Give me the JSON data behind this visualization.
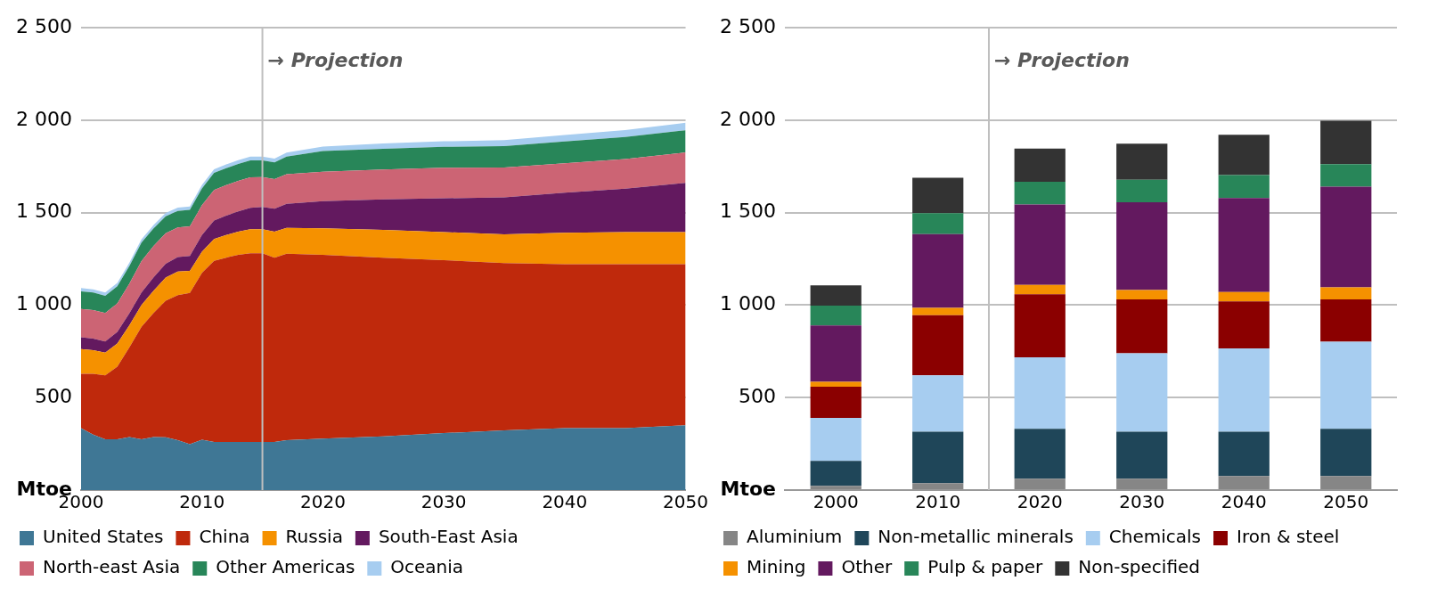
{
  "chart_data": [
    {
      "type": "area",
      "stacked": true,
      "x": [
        2000,
        2001,
        2002,
        2003,
        2004,
        2005,
        2006,
        2007,
        2008,
        2009,
        2010,
        2011,
        2012,
        2013,
        2014,
        2015,
        2016,
        2017,
        2020,
        2025,
        2030,
        2035,
        2040,
        2045,
        2050
      ],
      "series": [
        {
          "name": "United States",
          "color": "#3f7795",
          "values": [
            335,
            300,
            275,
            275,
            287,
            275,
            287,
            285,
            270,
            248,
            272,
            260,
            260,
            260,
            260,
            260,
            260,
            270,
            278,
            290,
            308,
            323,
            335,
            335,
            350
          ]
        },
        {
          "name": "China",
          "color": "#bf290c",
          "values": [
            294,
            329,
            345,
            393,
            485,
            608,
            671,
            739,
            784,
            818,
            902,
            980,
            997,
            1012,
            1021,
            1021,
            997,
            1008,
            994,
            967,
            935,
            905,
            887,
            887,
            872
          ]
        },
        {
          "name": "Russia",
          "color": "#f59100",
          "values": [
            134,
            128,
            123,
            125,
            120,
            118,
            120,
            125,
            128,
            120,
            115,
            118,
            122,
            125,
            130,
            130,
            140,
            140,
            144,
            150,
            152,
            155,
            170,
            173,
            173
          ]
        },
        {
          "name": "South-East Asia",
          "color": "#63195f",
          "values": [
            63,
            62,
            60,
            62,
            65,
            68,
            72,
            75,
            78,
            80,
            90,
            100,
            105,
            110,
            115,
            120,
            125,
            130,
            147,
            165,
            183,
            200,
            216,
            235,
            266
          ]
        },
        {
          "name": "North-east Asia",
          "color": "#cc6474",
          "values": [
            153,
            155,
            155,
            155,
            160,
            170,
            170,
            165,
            160,
            160,
            162,
            165,
            165,
            165,
            165,
            162,
            160,
            160,
            159,
            162,
            165,
            162,
            159,
            160,
            165
          ]
        },
        {
          "name": "Other Americas",
          "color": "#288659",
          "values": [
            96,
            94,
            92,
            92,
            95,
            100,
            95,
            92,
            90,
            90,
            90,
            92,
            92,
            92,
            92,
            90,
            90,
            95,
            111,
            112,
            113,
            115,
            118,
            120,
            120
          ]
        },
        {
          "name": "Oceania",
          "color": "#a7cdf0",
          "values": [
            18,
            18,
            18,
            18,
            18,
            18,
            18,
            18,
            18,
            18,
            20,
            20,
            20,
            20,
            20,
            20,
            20,
            22,
            25,
            28,
            30,
            32,
            35,
            37,
            40
          ]
        }
      ],
      "xlim": [
        2000,
        2050
      ],
      "xticks": [
        2000,
        2010,
        2020,
        2030,
        2040,
        2050
      ],
      "ylim": [
        0,
        2500
      ],
      "yticks": [
        {
          "value": 0,
          "label": "Mtoe"
        },
        500,
        1000,
        1500,
        2000,
        2500
      ],
      "grid": "y",
      "legend": "bottom",
      "ref_lines": [
        {
          "axis": "x",
          "value": 2015,
          "label": "→ Projection",
          "color": "#bfbfbf"
        }
      ]
    },
    {
      "type": "bar",
      "stacked": true,
      "categories": [
        "2000",
        "2010",
        "2020",
        "2030",
        "2040",
        "2050"
      ],
      "series": [
        {
          "name": "Aluminium",
          "color": "#868686",
          "values": [
            23,
            37,
            62,
            62,
            76,
            76
          ]
        },
        {
          "name": "Non-metallic minerals",
          "color": "#1f4659",
          "values": [
            135,
            279,
            269,
            254,
            240,
            255
          ]
        },
        {
          "name": "Chemicals",
          "color": "#a7cdf0",
          "values": [
            232,
            305,
            387,
            424,
            450,
            471
          ]
        },
        {
          "name": "Iron & steel",
          "color": "#8b0000",
          "values": [
            169,
            325,
            341,
            291,
            254,
            229
          ]
        },
        {
          "name": "Mining",
          "color": "#f59100",
          "values": [
            26,
            40,
            51,
            51,
            51,
            65
          ]
        },
        {
          "name": "Other",
          "color": "#63195f",
          "values": [
            305,
            398,
            435,
            474,
            508,
            545
          ]
        },
        {
          "name": "Pulp & paper",
          "color": "#288659",
          "values": [
            107,
            113,
            122,
            122,
            124,
            122
          ]
        },
        {
          "name": "Non-specified",
          "color": "#333333",
          "values": [
            110,
            192,
            180,
            195,
            218,
            234
          ]
        }
      ],
      "ylim": [
        0,
        2500
      ],
      "yticks": [
        {
          "value": 0,
          "label": "Mtoe"
        },
        500,
        1000,
        1500,
        2000,
        2500
      ],
      "grid": "y",
      "legend": "bottom",
      "annotations": [
        "→ Projection"
      ]
    }
  ]
}
